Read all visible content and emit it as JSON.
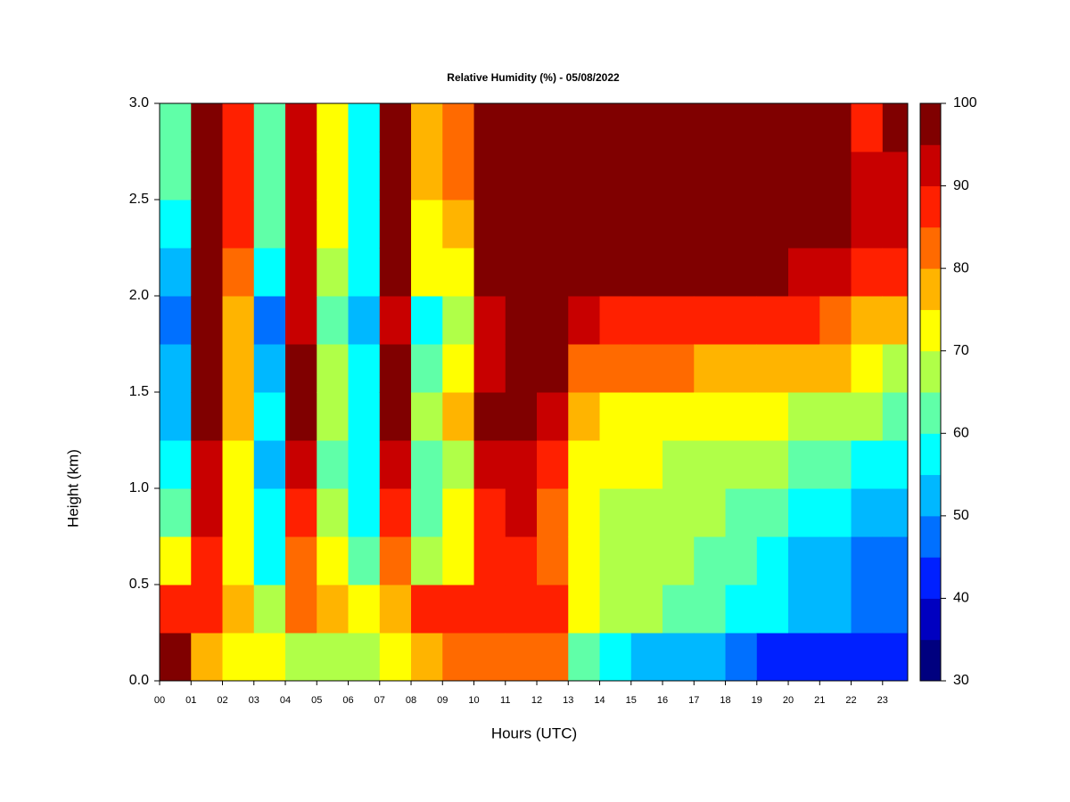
{
  "chart_data": {
    "type": "heatmap",
    "title": "Relative Humidity (%) - 05/08/2022",
    "xlabel": "Hours (UTC)",
    "ylabel": "Height (km)",
    "x": [
      0.5,
      1.5,
      2.5,
      3.5,
      4.5,
      5.5,
      6.5,
      7.5,
      8.5,
      9.5,
      10.5,
      11.5,
      12.5,
      13.5,
      14.5,
      15.5,
      16.5,
      17.5,
      18.5,
      19.5,
      20.5,
      21.5,
      22.5,
      23.5
    ],
    "y": [
      0.125,
      0.375,
      0.625,
      0.875,
      1.125,
      1.375,
      1.625,
      1.875,
      2.125,
      2.375,
      2.625,
      2.875
    ],
    "z": [
      [
        97,
        88,
        75,
        65,
        58,
        55,
        55,
        50,
        55,
        60,
        62,
        65
      ],
      [
        80,
        88,
        90,
        92,
        95,
        97,
        96,
        97,
        100,
        100,
        100,
        100
      ],
      [
        72,
        80,
        75,
        72,
        75,
        80,
        80,
        78,
        85,
        88,
        88,
        88
      ],
      [
        72,
        70,
        60,
        58,
        55,
        58,
        55,
        50,
        58,
        62,
        62,
        62
      ],
      [
        70,
        85,
        85,
        88,
        92,
        97,
        97,
        95,
        95,
        95,
        95,
        95
      ],
      [
        70,
        80,
        72,
        68,
        65,
        70,
        68,
        65,
        70,
        72,
        72,
        72
      ],
      [
        68,
        72,
        62,
        58,
        56,
        58,
        56,
        52,
        58,
        60,
        60,
        60
      ],
      [
        72,
        80,
        85,
        88,
        92,
        97,
        96,
        95,
        97,
        98,
        98,
        98
      ],
      [
        80,
        88,
        70,
        65,
        62,
        70,
        65,
        60,
        72,
        75,
        78,
        80
      ],
      [
        85,
        88,
        75,
        72,
        70,
        78,
        75,
        68,
        75,
        80,
        82,
        82
      ],
      [
        85,
        90,
        88,
        90,
        92,
        96,
        95,
        95,
        97,
        99,
        99,
        99
      ],
      [
        85,
        90,
        90,
        92,
        94,
        97,
        97,
        97,
        100,
        100,
        100,
        100
      ],
      [
        82,
        88,
        85,
        85,
        88,
        94,
        96,
        98,
        100,
        100,
        100,
        100
      ],
      [
        62,
        72,
        72,
        72,
        74,
        80,
        85,
        92,
        100,
        100,
        100,
        100
      ],
      [
        58,
        68,
        70,
        70,
        72,
        75,
        85,
        90,
        100,
        100,
        100,
        100
      ],
      [
        55,
        66,
        70,
        70,
        72,
        75,
        85,
        90,
        100,
        100,
        100,
        100
      ],
      [
        55,
        65,
        68,
        68,
        70,
        73,
        82,
        90,
        100,
        100,
        100,
        100
      ],
      [
        52,
        62,
        65,
        66,
        68,
        72,
        80,
        88,
        100,
        100,
        100,
        100
      ],
      [
        50,
        60,
        62,
        65,
        68,
        72,
        80,
        88,
        100,
        100,
        100,
        100
      ],
      [
        45,
        56,
        58,
        62,
        66,
        72,
        80,
        88,
        96,
        100,
        100,
        100
      ],
      [
        45,
        55,
        55,
        60,
        65,
        70,
        78,
        86,
        94,
        98,
        97,
        96
      ],
      [
        44,
        52,
        54,
        58,
        64,
        68,
        76,
        84,
        94,
        98,
        98,
        98
      ],
      [
        42,
        48,
        50,
        55,
        60,
        66,
        72,
        80,
        90,
        94,
        92,
        90
      ],
      [
        42,
        48,
        50,
        55,
        58,
        64,
        70,
        78,
        88,
        94,
        95,
        96
      ]
    ],
    "xlim": [
      0,
      23.8
    ],
    "ylim": [
      0,
      3
    ],
    "xticks": [
      {
        "value": 0,
        "label": "00"
      },
      {
        "value": 1,
        "label": "01"
      },
      {
        "value": 2,
        "label": "02"
      },
      {
        "value": 3,
        "label": "03"
      },
      {
        "value": 4,
        "label": "04"
      },
      {
        "value": 5,
        "label": "05"
      },
      {
        "value": 6,
        "label": "06"
      },
      {
        "value": 7,
        "label": "07"
      },
      {
        "value": 8,
        "label": "08"
      },
      {
        "value": 9,
        "label": "09"
      },
      10,
      11,
      12,
      13,
      14,
      15,
      16,
      17,
      18,
      19,
      20,
      21,
      22,
      23
    ],
    "yticks": [
      {
        "value": 0,
        "label": "0.0"
      },
      0.5,
      {
        "value": 1,
        "label": "1.0"
      },
      1.5,
      {
        "value": 2,
        "label": "2.0"
      },
      2.5,
      {
        "value": 3,
        "label": "3.0"
      }
    ],
    "levels": [
      30,
      35,
      40,
      45,
      50,
      55,
      60,
      65,
      70,
      75,
      80,
      85,
      90,
      95,
      100
    ],
    "colors": [
      "#00007f",
      "#0000c0",
      "#0020ff",
      "#0070ff",
      "#00b8ff",
      "#00ffff",
      "#60ffa8",
      "#b0ff48",
      "#ffff00",
      "#ffb400",
      "#ff6a00",
      "#ff2000",
      "#c80000",
      "#800000"
    ],
    "colorbar_ticks": [
      30,
      40,
      50,
      60,
      70,
      80,
      90,
      100
    ]
  }
}
